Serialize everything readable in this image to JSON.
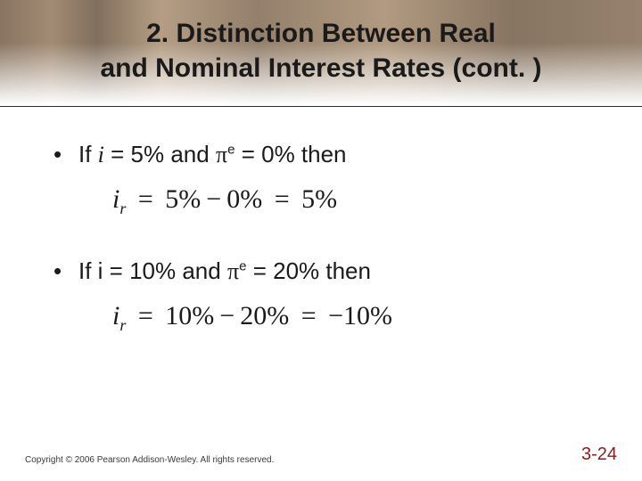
{
  "slide": {
    "title_line1": "2. Distinction Between Real",
    "title_line2": "and Nominal Interest Rates (cont. )",
    "bullet1_prefix": "If ",
    "bullet1_i": "i",
    "bullet1_mid1": " = 5% and ",
    "bullet1_pi": "π",
    "bullet1_sup": "e",
    "bullet1_mid2": " = 0% then",
    "eq1_i": "i",
    "eq1_sub": "r",
    "eq1_eq": "=",
    "eq1_a": "5%",
    "eq1_minus": "−",
    "eq1_b": "0%",
    "eq1_eq2": "=",
    "eq1_c": "5%",
    "bullet2_prefix": "If i = 10% and ",
    "bullet2_pi": "π",
    "bullet2_sup": "e",
    "bullet2_mid2": " = 20% then",
    "eq2_i": "i",
    "eq2_sub": "r",
    "eq2_eq": "=",
    "eq2_a": "10%",
    "eq2_minus": "−",
    "eq2_b": "20%",
    "eq2_eq2": "=",
    "eq2_c": "−10%",
    "copyright": "Copyright © 2006 Pearson Addison-Wesley. All rights reserved.",
    "page": "3-24"
  },
  "colors": {
    "text": "#1a1a1a",
    "page_number": "#8a1d1d",
    "background": "#ffffff"
  }
}
